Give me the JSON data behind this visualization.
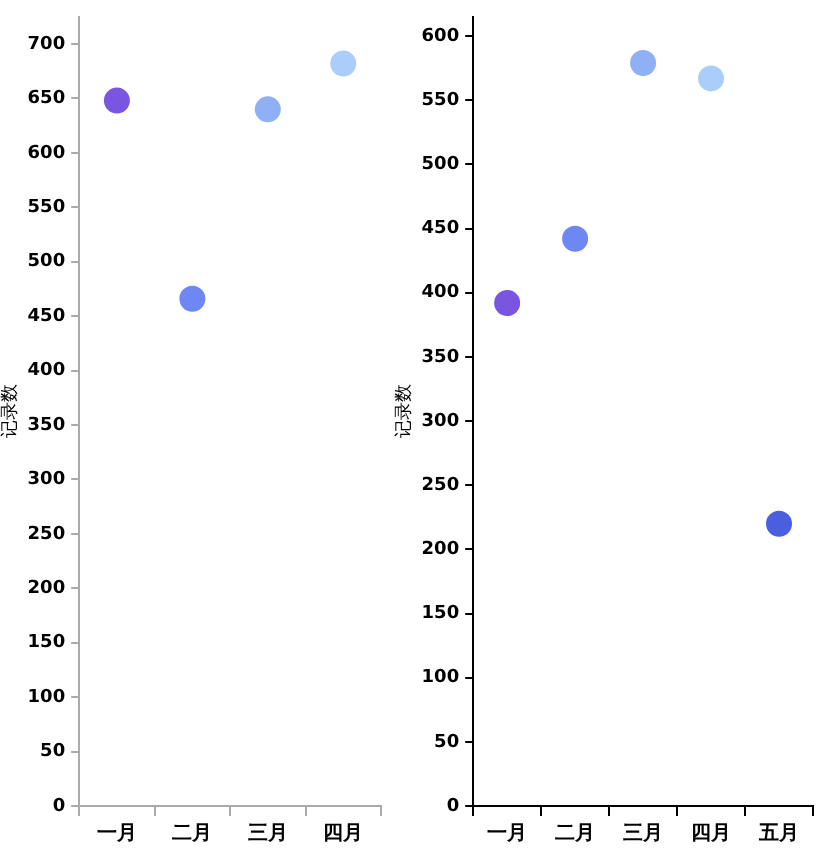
{
  "chart_data": [
    {
      "type": "scatter",
      "ylabel": "记录数",
      "categories": [
        "一月",
        "二月",
        "三月",
        "四月"
      ],
      "values": [
        648,
        466,
        640,
        682
      ],
      "colors": [
        "#7a55df",
        "#6f86f5",
        "#8fb0f5",
        "#abcdfa"
      ],
      "ylim": [
        0,
        725
      ],
      "yticks": [
        0,
        50,
        100,
        150,
        200,
        250,
        300,
        350,
        400,
        450,
        500,
        550,
        600,
        650,
        700
      ],
      "marker": "circle",
      "grid": false,
      "legend": false
    },
    {
      "type": "scatter",
      "ylabel": "记录数",
      "categories": [
        "一月",
        "二月",
        "三月",
        "四月",
        "五月"
      ],
      "values": [
        392,
        442,
        579,
        567,
        220
      ],
      "colors": [
        "#7a55df",
        "#6f86f5",
        "#8fb0f5",
        "#abcdfa",
        "#4a5ee0"
      ],
      "ylim": [
        0,
        615
      ],
      "yticks": [
        0,
        50,
        100,
        150,
        200,
        250,
        300,
        350,
        400,
        450,
        500,
        550,
        600
      ],
      "marker": "circle",
      "grid": false,
      "legend": false
    }
  ]
}
